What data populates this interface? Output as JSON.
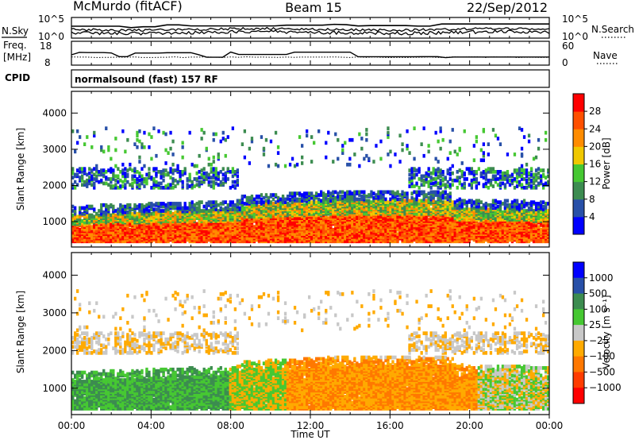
{
  "header": {
    "station": "McMurdo (fitACF)",
    "beam": "Beam 15",
    "date": "22/Sep/2012"
  },
  "noise_panel": {
    "left_label": "N.Sky",
    "right_label": "N.Search",
    "left_ticks": [
      "10^5",
      "10^0"
    ],
    "right_ticks": [
      "10^5",
      "10^0"
    ]
  },
  "freq_panel": {
    "left_label_1": "Freq.",
    "left_label_2": "[MHz]",
    "left_ticks": [
      "18",
      "8"
    ],
    "right_label": "Nave",
    "right_ticks": [
      "60",
      "0"
    ]
  },
  "cpid": {
    "label": "CPID",
    "text": "normalsound (fast) 157 RF"
  },
  "colors": {
    "power": [
      "#0000ff",
      "#2850a8",
      "#3c8c50",
      "#46c832",
      "#f0c800",
      "#ff8c00",
      "#ff5000",
      "#ff0000"
    ],
    "velocity": [
      "#0000ff",
      "#2850a8",
      "#3c8c50",
      "#46c832",
      "#c8c8c8",
      "#ffaa00",
      "#ff7800",
      "#ff3c00",
      "#ff0000"
    ]
  },
  "chart_data": [
    {
      "type": "heatmap",
      "name": "power",
      "ylabel": "Slant Range [km]",
      "yticks": [
        "1000",
        "2000",
        "3000",
        "4000"
      ],
      "ylim": [
        300,
        4600
      ],
      "colorbar_label": "Power [dB]",
      "colorbar_ticks": [
        "4",
        "8",
        "12",
        "16",
        "20",
        "24",
        "28"
      ],
      "colorbar_range": [
        0,
        32
      ]
    },
    {
      "type": "heatmap",
      "name": "velocity",
      "ylabel": "Slant Range [km]",
      "yticks": [
        "1000",
        "2000",
        "3000",
        "4000"
      ],
      "ylim": [
        300,
        4600
      ],
      "colorbar_label": "Velocity [m s⁻¹]",
      "colorbar_ticks": [
        "1000",
        "500",
        "100",
        "25",
        "−25",
        "−100",
        "−500",
        "−1000"
      ]
    }
  ],
  "x_axis": {
    "label": "Time UT",
    "ticks": [
      "00:00",
      "04:00",
      "08:00",
      "12:00",
      "16:00",
      "20:00",
      "00:00"
    ]
  }
}
